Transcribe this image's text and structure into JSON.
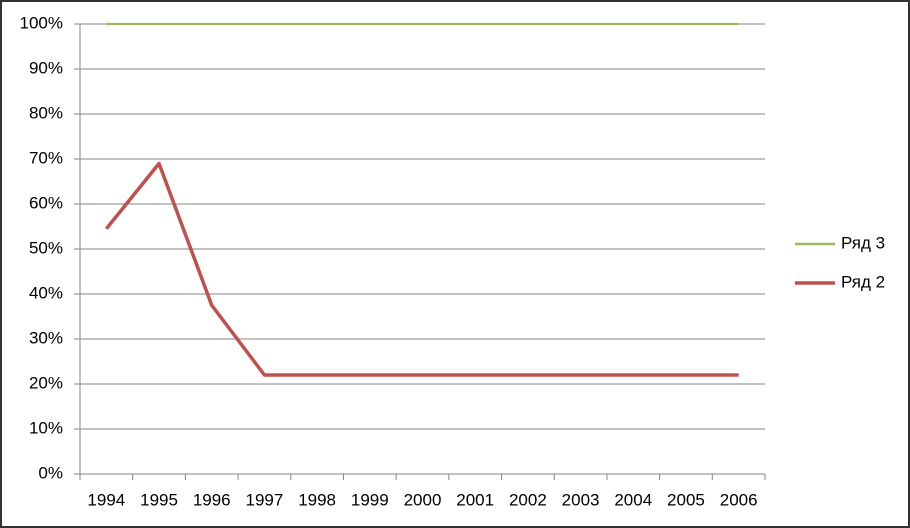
{
  "chart_data": {
    "type": "line",
    "categories": [
      "1994",
      "1995",
      "1996",
      "1997",
      "1998",
      "1999",
      "2000",
      "2001",
      "2002",
      "2003",
      "2004",
      "2005",
      "2006"
    ],
    "series": [
      {
        "name": "Ряд 3",
        "color": "#9bbb59",
        "values": [
          100,
          100,
          100,
          100,
          100,
          100,
          100,
          100,
          100,
          100,
          100,
          100,
          100
        ]
      },
      {
        "name": "Ряд 2",
        "color": "#c0504d",
        "values": [
          54.5,
          69,
          37.5,
          22,
          22,
          22,
          22,
          22,
          22,
          22,
          22,
          22,
          22
        ]
      }
    ],
    "ylim": [
      0,
      100
    ],
    "yticks": [
      {
        "value": 0,
        "label": "0%"
      },
      {
        "value": 10,
        "label": "10%"
      },
      {
        "value": 20,
        "label": "20%"
      },
      {
        "value": 30,
        "label": "30%"
      },
      {
        "value": 40,
        "label": "40%"
      },
      {
        "value": 50,
        "label": "50%"
      },
      {
        "value": 60,
        "label": "60%"
      },
      {
        "value": 70,
        "label": "70%"
      },
      {
        "value": 80,
        "label": "80%"
      },
      {
        "value": 90,
        "label": "90%"
      },
      {
        "value": 100,
        "label": "100%"
      }
    ],
    "grid": true,
    "legend": "right"
  }
}
